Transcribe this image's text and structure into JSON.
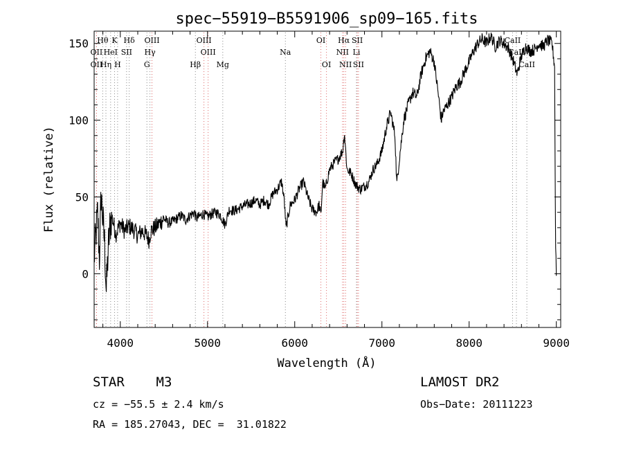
{
  "chart_data": {
    "type": "line",
    "title": "spec−55919−B5591906_sp09−165.fits",
    "xlabel": "Wavelength (Å)",
    "ylabel": "Flux (relative)",
    "xlim": [
      3700,
      9050
    ],
    "ylim": [
      -35,
      158
    ],
    "xticks": [
      4000,
      5000,
      6000,
      7000,
      8000,
      9000
    ],
    "yticks": [
      0,
      50,
      100,
      150
    ],
    "grid": false,
    "line_color": "#000000",
    "marker_color": "#000000",
    "series": [
      {
        "anchors": [
          [
            3700,
            10
          ],
          [
            3720,
            25
          ],
          [
            3740,
            40
          ],
          [
            3760,
            10
          ],
          [
            3780,
            52
          ],
          [
            3800,
            35
          ],
          [
            3820,
            20
          ],
          [
            3840,
            -12
          ],
          [
            3860,
            15
          ],
          [
            3880,
            30
          ],
          [
            3900,
            38
          ],
          [
            3950,
            26
          ],
          [
            4000,
            33
          ],
          [
            4050,
            28
          ],
          [
            4100,
            31
          ],
          [
            4150,
            29
          ],
          [
            4200,
            25
          ],
          [
            4250,
            28
          ],
          [
            4300,
            25
          ],
          [
            4330,
            22
          ],
          [
            4350,
            28
          ],
          [
            4400,
            30
          ],
          [
            4450,
            33
          ],
          [
            4500,
            36
          ],
          [
            4550,
            33
          ],
          [
            4600,
            34
          ],
          [
            4650,
            36
          ],
          [
            4700,
            38
          ],
          [
            4750,
            35
          ],
          [
            4800,
            38
          ],
          [
            4850,
            40
          ],
          [
            4870,
            36
          ],
          [
            4900,
            37
          ],
          [
            4950,
            39
          ],
          [
            5000,
            37
          ],
          [
            5050,
            39
          ],
          [
            5100,
            40
          ],
          [
            5150,
            38
          ],
          [
            5200,
            32
          ],
          [
            5250,
            42
          ],
          [
            5300,
            41
          ],
          [
            5350,
            42
          ],
          [
            5400,
            44
          ],
          [
            5450,
            45
          ],
          [
            5500,
            46
          ],
          [
            5550,
            48
          ],
          [
            5600,
            45
          ],
          [
            5650,
            48
          ],
          [
            5700,
            45
          ],
          [
            5750,
            52
          ],
          [
            5800,
            55
          ],
          [
            5850,
            60
          ],
          [
            5880,
            48
          ],
          [
            5900,
            30
          ],
          [
            5950,
            45
          ],
          [
            6000,
            48
          ],
          [
            6050,
            55
          ],
          [
            6100,
            60
          ],
          [
            6150,
            50
          ],
          [
            6200,
            42
          ],
          [
            6250,
            40
          ],
          [
            6280,
            45
          ],
          [
            6300,
            38
          ],
          [
            6320,
            60
          ],
          [
            6350,
            55
          ],
          [
            6400,
            68
          ],
          [
            6450,
            72
          ],
          [
            6500,
            75
          ],
          [
            6550,
            80
          ],
          [
            6570,
            92
          ],
          [
            6600,
            68
          ],
          [
            6650,
            65
          ],
          [
            6700,
            58
          ],
          [
            6750,
            55
          ],
          [
            6800,
            57
          ],
          [
            6850,
            60
          ],
          [
            6900,
            68
          ],
          [
            6950,
            72
          ],
          [
            7000,
            80
          ],
          [
            7050,
            95
          ],
          [
            7100,
            105
          ],
          [
            7150,
            90
          ],
          [
            7170,
            58
          ],
          [
            7200,
            75
          ],
          [
            7250,
            100
          ],
          [
            7300,
            110
          ],
          [
            7350,
            118
          ],
          [
            7400,
            115
          ],
          [
            7450,
            130
          ],
          [
            7500,
            140
          ],
          [
            7550,
            145
          ],
          [
            7600,
            138
          ],
          [
            7650,
            115
          ],
          [
            7680,
            100
          ],
          [
            7700,
            105
          ],
          [
            7750,
            110
          ],
          [
            7800,
            115
          ],
          [
            7850,
            122
          ],
          [
            7900,
            125
          ],
          [
            7950,
            132
          ],
          [
            8000,
            138
          ],
          [
            8050,
            145
          ],
          [
            8100,
            150
          ],
          [
            8150,
            153
          ],
          [
            8200,
            150
          ],
          [
            8250,
            155
          ],
          [
            8300,
            148
          ],
          [
            8350,
            152
          ],
          [
            8400,
            150
          ],
          [
            8450,
            147
          ],
          [
            8500,
            140
          ],
          [
            8550,
            130
          ],
          [
            8600,
            142
          ],
          [
            8650,
            148
          ],
          [
            8700,
            145
          ],
          [
            8750,
            146
          ],
          [
            8800,
            150
          ],
          [
            8850,
            148
          ],
          [
            8900,
            152
          ],
          [
            8950,
            150
          ],
          [
            8980,
            135
          ],
          [
            8990,
            25
          ],
          [
            9000,
            0
          ]
        ]
      }
    ],
    "lines": [
      {
        "labels": [
          "Hθ"
        ],
        "x": 3798,
        "row": 0,
        "color": "gray"
      },
      {
        "labels": [
          "OII"
        ],
        "x": 3727,
        "row": 1,
        "color": "red"
      },
      {
        "labels": [
          "OII"
        ],
        "x": 3727,
        "row": 2,
        "color": "red"
      },
      {
        "labels": [
          "Hη"
        ],
        "x": 3835,
        "row": 2,
        "color": "gray"
      },
      {
        "labels": [
          "K"
        ],
        "x": 3934,
        "row": 0,
        "color": "gray"
      },
      {
        "labels": [
          "HeI"
        ],
        "x": 3889,
        "row": 1,
        "color": "gray"
      },
      {
        "labels": [
          "H"
        ],
        "x": 3969,
        "row": 2,
        "color": "gray"
      },
      {
        "labels": [
          "SII"
        ],
        "x": 4072,
        "row": 1,
        "color": "gray"
      },
      {
        "labels": [
          "Hδ"
        ],
        "x": 4102,
        "row": 0,
        "color": "gray"
      },
      {
        "labels": [
          "OIII"
        ],
        "x": 4363,
        "row": 0,
        "color": "red"
      },
      {
        "labels": [
          "Hγ"
        ],
        "x": 4340,
        "row": 1,
        "color": "gray"
      },
      {
        "labels": [
          "G"
        ],
        "x": 4305,
        "row": 2,
        "color": "gray"
      },
      {
        "labels": [
          "Hβ"
        ],
        "x": 4861,
        "row": 2,
        "color": "gray"
      },
      {
        "labels": [
          "OIII"
        ],
        "x": 4959,
        "row": 0,
        "color": "red"
      },
      {
        "labels": [
          "OIII"
        ],
        "x": 5007,
        "row": 1,
        "color": "red"
      },
      {
        "labels": [
          "Mg"
        ],
        "x": 5175,
        "row": 2,
        "color": "gray"
      },
      {
        "labels": [
          "Na"
        ],
        "x": 5893,
        "row": 1,
        "color": "gray"
      },
      {
        "labels": [
          "OI"
        ],
        "x": 6300,
        "row": 0,
        "color": "red"
      },
      {
        "labels": [
          "OI"
        ],
        "x": 6364,
        "row": 2,
        "color": "red"
      },
      {
        "labels": [
          "Hα"
        ],
        "x": 6563,
        "row": 0,
        "color": "red"
      },
      {
        "labels": [
          "NII"
        ],
        "x": 6548,
        "row": 1,
        "color": "red"
      },
      {
        "labels": [
          "NII"
        ],
        "x": 6583,
        "row": 2,
        "color": "red"
      },
      {
        "labels": [
          "SII"
        ],
        "x": 6717,
        "row": 0,
        "color": "red"
      },
      {
        "labels": [
          "Li"
        ],
        "x": 6708,
        "row": 1,
        "color": "gray"
      },
      {
        "labels": [
          "SII"
        ],
        "x": 6731,
        "row": 2,
        "color": "red"
      },
      {
        "labels": [
          "CaII"
        ],
        "x": 8498,
        "row": 0,
        "color": "gray"
      },
      {
        "labels": [
          "CaII"
        ],
        "x": 8542,
        "row": 1,
        "color": "gray"
      },
      {
        "labels": [
          "CaII"
        ],
        "x": 8662,
        "row": 2,
        "color": "gray"
      }
    ]
  },
  "info": {
    "class": "STAR    M3",
    "survey": "LAMOST DR2",
    "cz": "cz = −55.5 ± 2.4 km/s",
    "obsdate": "Obs−Date: 20111223",
    "radec": "RA = 185.27043, DEC =  31.01822"
  }
}
